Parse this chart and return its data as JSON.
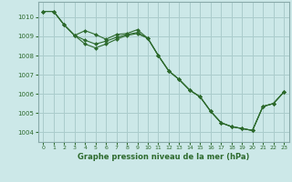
{
  "title": "Graphe pression niveau de la mer (hPa)",
  "background_color": "#cce8e8",
  "grid_color": "#aacccc",
  "line_color": "#2d6a2d",
  "xlim": [
    -0.5,
    23.5
  ],
  "ylim": [
    1003.5,
    1010.8
  ],
  "yticks": [
    1004,
    1005,
    1006,
    1007,
    1008,
    1009,
    1010
  ],
  "xticks": [
    0,
    1,
    2,
    3,
    4,
    5,
    6,
    7,
    8,
    9,
    10,
    11,
    12,
    13,
    14,
    15,
    16,
    17,
    18,
    19,
    20,
    21,
    22,
    23
  ],
  "series": [
    {
      "x": [
        0,
        1,
        2,
        3,
        4,
        5,
        6,
        7,
        8,
        9,
        10,
        11,
        12,
        13,
        14,
        15,
        16,
        17,
        18,
        19,
        20,
        21,
        22,
        23
      ],
      "y": [
        1010.3,
        1010.3,
        1009.6,
        1009.05,
        1009.3,
        1009.1,
        1008.85,
        1009.1,
        1009.15,
        1009.35,
        1008.9,
        1008.0,
        1007.2,
        1006.75,
        1006.2,
        1005.85,
        1005.1,
        1004.5,
        1004.3,
        1004.2,
        1004.1,
        1005.35,
        1005.5,
        1006.1
      ]
    },
    {
      "x": [
        0,
        1,
        2,
        3,
        4,
        5,
        6,
        7,
        8,
        9,
        10,
        11,
        12,
        13,
        14,
        15,
        16,
        17,
        18,
        19,
        20,
        21,
        22,
        23
      ],
      "y": [
        1010.3,
        1010.3,
        1009.6,
        1009.05,
        1008.8,
        1008.6,
        1008.75,
        1008.95,
        1009.1,
        1009.2,
        1008.9,
        1008.0,
        1007.2,
        1006.75,
        1006.2,
        1005.85,
        1005.1,
        1004.5,
        1004.3,
        1004.2,
        1004.1,
        1005.35,
        1005.5,
        1006.1
      ]
    },
    {
      "x": [
        0,
        1,
        2,
        3,
        4,
        5,
        6,
        7,
        8,
        9,
        10,
        11,
        12,
        13,
        14,
        15,
        16,
        17,
        18,
        19,
        20,
        21,
        22,
        23
      ],
      "y": [
        1010.3,
        1010.3,
        1009.6,
        1009.05,
        1008.6,
        1008.4,
        1008.6,
        1008.85,
        1009.05,
        1009.15,
        1008.9,
        1008.0,
        1007.2,
        1006.75,
        1006.2,
        1005.85,
        1005.1,
        1004.5,
        1004.3,
        1004.2,
        1004.1,
        1005.35,
        1005.5,
        1006.1
      ]
    }
  ]
}
